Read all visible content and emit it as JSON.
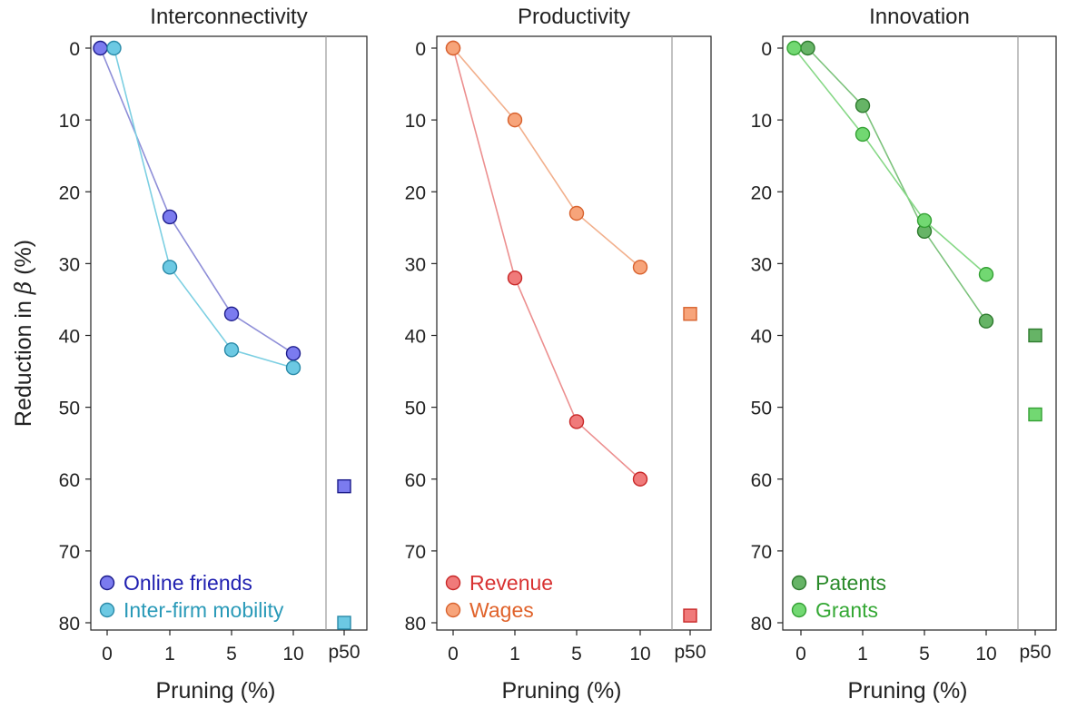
{
  "figure": {
    "ylabel_prefix": "Reduction in ",
    "ylabel_symbol": "β",
    "ylabel_suffix": " (%)"
  },
  "chart_data": [
    {
      "type": "line",
      "title": "Interconnectivity",
      "xlabel": "Pruning (%)",
      "ylabel": "Reduction in β (%)",
      "x_categories": [
        "0",
        "1",
        "5",
        "10"
      ],
      "extra_category": "p50",
      "ylim": [
        0,
        80
      ],
      "y_inverted": true,
      "yticks": [
        0,
        10,
        20,
        30,
        40,
        50,
        60,
        70,
        80
      ],
      "legend_position": "bottom-left",
      "series": [
        {
          "name": "Online friends",
          "color": "#7b7bef",
          "edge": "#1d1d8c",
          "label_color": "#1f1fb0",
          "line": "#8f8fd8",
          "x": [
            0,
            1,
            5,
            10
          ],
          "values": [
            0,
            23.5,
            37,
            42.5
          ],
          "p50": 61
        },
        {
          "name": "Inter-firm mobility",
          "color": "#6cc9e3",
          "edge": "#2a8aa8",
          "label_color": "#2a9ab8",
          "line": "#7ccfe2",
          "x": [
            0,
            1,
            5,
            10
          ],
          "values": [
            0,
            30.5,
            42,
            44.5
          ],
          "p50": 80
        }
      ]
    },
    {
      "type": "line",
      "title": "Productivity",
      "xlabel": "Pruning (%)",
      "ylabel": "Reduction in β (%)",
      "x_categories": [
        "0",
        "1",
        "5",
        "10"
      ],
      "extra_category": "p50",
      "ylim": [
        0,
        80
      ],
      "y_inverted": true,
      "yticks": [
        0,
        10,
        20,
        30,
        40,
        50,
        60,
        70,
        80
      ],
      "legend_position": "bottom-left",
      "series": [
        {
          "name": "Revenue",
          "color": "#f07a7a",
          "edge": "#c82828",
          "label_color": "#d83232",
          "line": "#ec8f8f",
          "x": [
            0,
            1,
            5,
            10
          ],
          "values": [
            0,
            32,
            52,
            60
          ],
          "p50": 79
        },
        {
          "name": "Wages",
          "color": "#f7a47a",
          "edge": "#d8622e",
          "label_color": "#e0622a",
          "line": "#f2b08d",
          "x": [
            0,
            1,
            5,
            10
          ],
          "values": [
            0,
            10,
            23,
            30.5
          ],
          "p50": 37
        }
      ]
    },
    {
      "type": "line",
      "title": "Innovation",
      "xlabel": "Pruning (%)",
      "ylabel": "Reduction in β (%)",
      "x_categories": [
        "0",
        "1",
        "5",
        "10"
      ],
      "extra_category": "p50",
      "ylim": [
        0,
        80
      ],
      "y_inverted": true,
      "yticks": [
        0,
        10,
        20,
        30,
        40,
        50,
        60,
        70,
        80
      ],
      "legend_position": "bottom-left",
      "series": [
        {
          "name": "Patents",
          "color": "#66b466",
          "edge": "#2e7a2e",
          "label_color": "#2a8a2a",
          "line": "#7cc27c",
          "x": [
            0,
            1,
            5,
            10
          ],
          "values": [
            0,
            8,
            25.5,
            38
          ],
          "p50": 40
        },
        {
          "name": "Grants",
          "color": "#72d872",
          "edge": "#34a034",
          "label_color": "#34a834",
          "line": "#86d886",
          "x": [
            0,
            1,
            5,
            10
          ],
          "values": [
            0,
            12,
            24,
            31.5
          ],
          "p50": 51
        }
      ]
    }
  ]
}
